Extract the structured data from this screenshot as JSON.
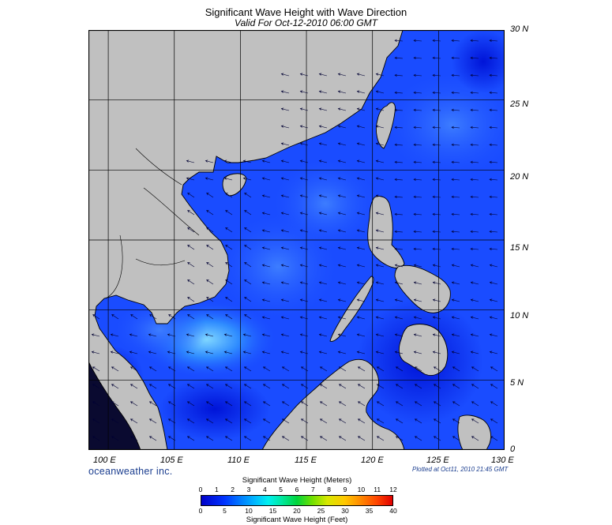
{
  "header": {
    "title": "Significant Wave Height with Wave Direction",
    "subtitle": "Valid For Oct-12-2010 06:00 GMT"
  },
  "map": {
    "lon_range": [
      98.5,
      130
    ],
    "lat_range": [
      0,
      30
    ],
    "lat_labels": [
      "30 N",
      "25 N",
      "20 N",
      "15 N",
      "10 N",
      "5 N",
      "0"
    ],
    "lon_labels": [
      "100 E",
      "105 E",
      "110 E",
      "115 E",
      "120 E",
      "125 E",
      "130 E"
    ],
    "land_color": "#c0c0c0",
    "ocean_base_color": "#1a4cff",
    "arrow_color": "#000033",
    "features": [
      "mainland-asia",
      "taiwan",
      "hainan",
      "luzon",
      "philippines-visayas",
      "mindanao",
      "palawan",
      "borneo",
      "malay-peninsula",
      "sumatra"
    ]
  },
  "branding": {
    "company": "oceanweather inc.",
    "plotted": "Plotted at Oct11, 2010 21:45 GMT"
  },
  "colorbar": {
    "title_top": "Significant Wave Height (Meters)",
    "title_bottom": "Significant Wave Height (Feet)",
    "meters": [
      "0",
      "1",
      "2",
      "3",
      "4",
      "5",
      "6",
      "7",
      "8",
      "9",
      "10",
      "11",
      "12"
    ],
    "feet": [
      "0",
      "5",
      "10",
      "15",
      "20",
      "25",
      "30",
      "35",
      "40"
    ],
    "range_m": [
      0,
      12
    ]
  }
}
